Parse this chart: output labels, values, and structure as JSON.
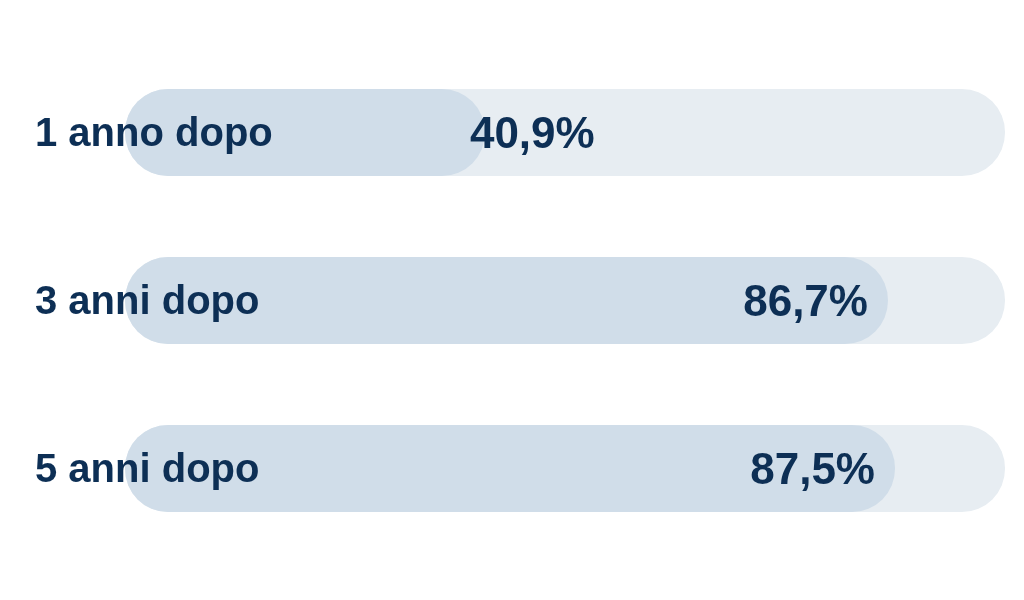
{
  "chart_data": {
    "type": "bar",
    "orientation": "horizontal",
    "categories": [
      "1 anno dopo",
      "3 anni dopo",
      "5 anni dopo"
    ],
    "values": [
      40.9,
      86.7,
      87.5
    ],
    "color": "#d0dde9",
    "value_labels": [
      "40,9%",
      "86,7%",
      "87,5%"
    ],
    "xlim": [
      0,
      100
    ],
    "tick_labels": "y"
  }
}
